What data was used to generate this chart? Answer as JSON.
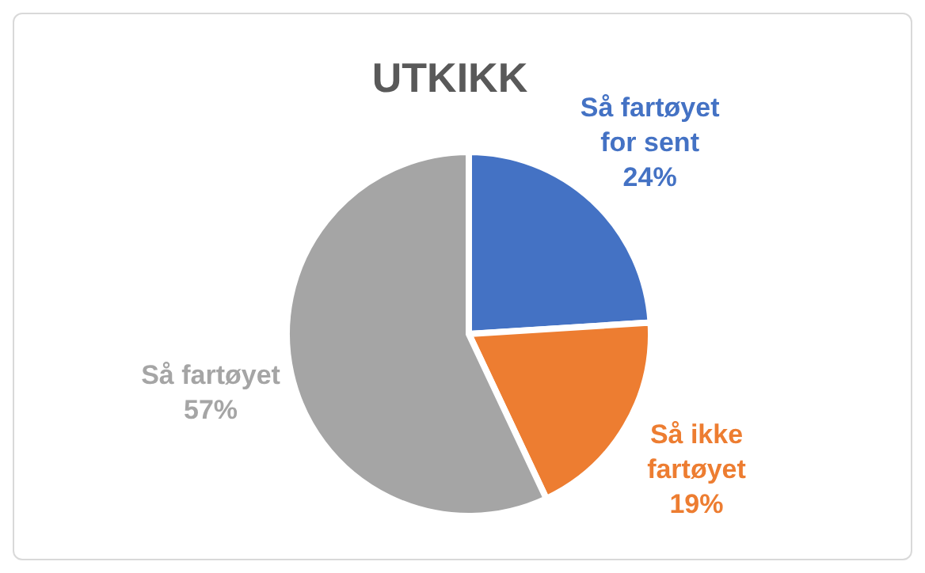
{
  "chart_data": {
    "type": "pie",
    "title": "UTKIKK",
    "categories": [
      "Så fartøyet for sent",
      "Så ikke fartøyet",
      "Så fartøyet"
    ],
    "values": [
      24,
      19,
      57
    ],
    "colors": [
      "#4472c4",
      "#ed7d31",
      "#a5a5a5"
    ],
    "value_labels": [
      "24%",
      "19%",
      "57%"
    ],
    "legend": false
  }
}
